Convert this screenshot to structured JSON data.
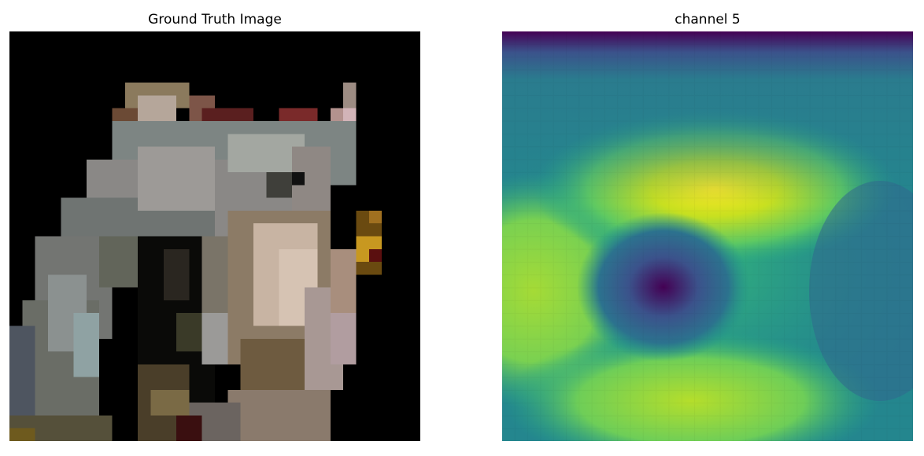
{
  "panels": {
    "ground_truth": {
      "title": "Ground Truth Image"
    },
    "feature_map": {
      "title": "channel 5"
    }
  },
  "colors": {
    "background": "#ffffff",
    "ground_truth_background": "#000000",
    "colormap": "viridis",
    "viridis_low": "#440154",
    "viridis_mid": "#21918c",
    "viridis_high": "#fde725"
  }
}
